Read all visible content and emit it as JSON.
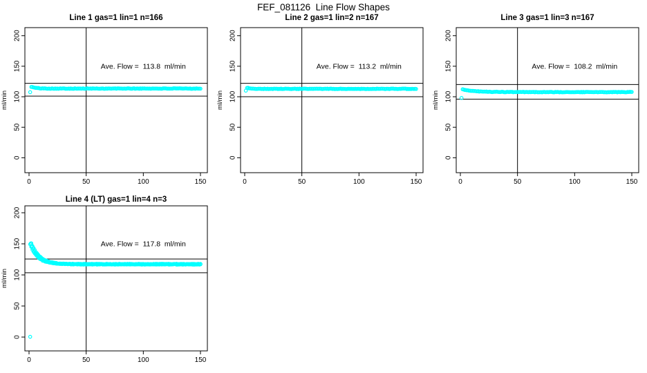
{
  "title": "FEF_081126  Line Flow Shapes",
  "chart_data": {
    "type": "scatter",
    "title": "FEF_081126  Line Flow Shapes",
    "point_color": "#00FFFF",
    "axis_color": "#000000",
    "background_color": "#FFFFFF",
    "axes": {
      "xlim": [
        0,
        150
      ],
      "ylim": [
        0,
        200
      ],
      "x_ticks": [
        0,
        50,
        100,
        150
      ],
      "y_ticks": [
        0,
        50,
        100,
        150,
        200
      ],
      "ylabel": "ml/min",
      "vline_x": 50,
      "grid": false
    },
    "subplots": [
      {
        "title": "Line 1 gas=1 lin=1 n=166",
        "annotation": "Ave. Flow =  113.8  ml/min",
        "avg_flow_ml_min": 113.8,
        "n": 166,
        "hlines": [
          122,
          101
        ],
        "outliers": [
          [
            1,
            107.5
          ]
        ],
        "series": [
          {
            "x0": 2,
            "x1": 150,
            "n": 164,
            "plateau": 113.4,
            "amp": 3.0,
            "tau": 4.0,
            "jitter": 0.45,
            "seed": 101
          }
        ]
      },
      {
        "title": "Line 2 gas=1 lin=2 n=167",
        "annotation": "Ave. Flow =  113.2  ml/min",
        "avg_flow_ml_min": 113.2,
        "n": 167,
        "hlines": [
          122,
          100
        ],
        "outliers": [
          [
            1,
            110
          ]
        ],
        "series": [
          {
            "x0": 2,
            "x1": 150,
            "n": 165,
            "plateau": 112.9,
            "amp": 1.8,
            "tau": 3.5,
            "jitter": 0.4,
            "seed": 202
          }
        ]
      },
      {
        "title": "Line 3 gas=1 lin=3 n=167",
        "annotation": "Ave. Flow =  108.2  ml/min",
        "avg_flow_ml_min": 108.2,
        "n": 167,
        "hlines": [
          120,
          96
        ],
        "outliers": [
          [
            1,
            98
          ]
        ],
        "series": [
          {
            "x0": 2,
            "x1": 150,
            "n": 165,
            "plateau": 107.6,
            "amp": 4.3,
            "tau": 11.0,
            "jitter": 0.4,
            "seed": 303
          }
        ]
      },
      {
        "title": "Line 4 (LT) gas=1 lin=4 n=3",
        "annotation": "Ave. Flow =  117.8  ml/min",
        "avg_flow_ml_min": 117.8,
        "n": 3,
        "hlines": [
          125.5,
          103.5
        ],
        "outliers": [
          [
            1,
            0.5
          ]
        ],
        "series": [
          {
            "x0": 1.0,
            "x1": 150,
            "n": 150,
            "plateau": 117.4,
            "amp": 32,
            "tau": 6.5,
            "jitter": 0.5,
            "seed": 404
          },
          {
            "x0": 1.5,
            "x1": 150,
            "n": 150,
            "plateau": 117.2,
            "amp": 33,
            "tau": 7.0,
            "jitter": 0.5,
            "seed": 405
          },
          {
            "x0": 2.0,
            "x1": 150,
            "n": 150,
            "plateau": 117.0,
            "amp": 34,
            "tau": 7.5,
            "jitter": 0.5,
            "seed": 406
          }
        ]
      }
    ]
  }
}
